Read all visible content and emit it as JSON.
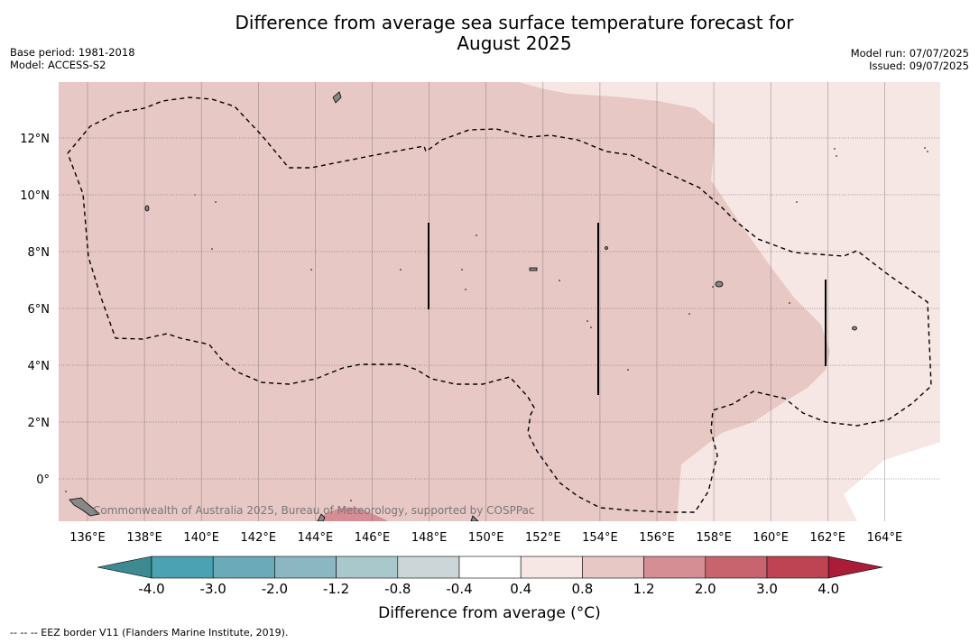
{
  "title_line1": "Difference from average sea surface temperature forecast for",
  "title_line2": "August 2025",
  "meta_left": {
    "base_period": "Base period: 1981-2018",
    "model": "Model: ACCESS-S2"
  },
  "meta_right": {
    "model_run": "Model run: 07/07/2025",
    "issued": "Issued: 09/07/2025"
  },
  "lat_labels": [
    "12°N",
    "10°N",
    "8°N",
    "6°N",
    "4°N",
    "2°N",
    "0°"
  ],
  "lon_labels": [
    "136°E",
    "138°E",
    "140°E",
    "142°E",
    "144°E",
    "146°E",
    "148°E",
    "150°E",
    "152°E",
    "154°E",
    "156°E",
    "158°E",
    "160°E",
    "162°E",
    "164°E"
  ],
  "copyright": "Commonwealth of Australia 2025, Bureau of Meteorology, supported by COSPPac",
  "colorbar": {
    "ticks": [
      "-4.0",
      "-3.0",
      "-2.0",
      "-1.2",
      "-0.8",
      "-0.4",
      "0.4",
      "0.8",
      "1.2",
      "2.0",
      "3.0",
      "4.0"
    ],
    "colors": [
      "#4aa2b2",
      "#6aaab9",
      "#8ab7c2",
      "#a9c8cc",
      "#ccd6d8",
      "#ffffff",
      "#f6e6e4",
      "#e8c8c4",
      "#d48e94",
      "#c8646e",
      "#be4454"
    ],
    "under_color": "#3d8a92",
    "over_color": "#aa1c38",
    "title": "Difference from average (°C)"
  },
  "footnote": "--  --  -- EEZ border V11 (Flanders Marine Institute, 2019)."
}
